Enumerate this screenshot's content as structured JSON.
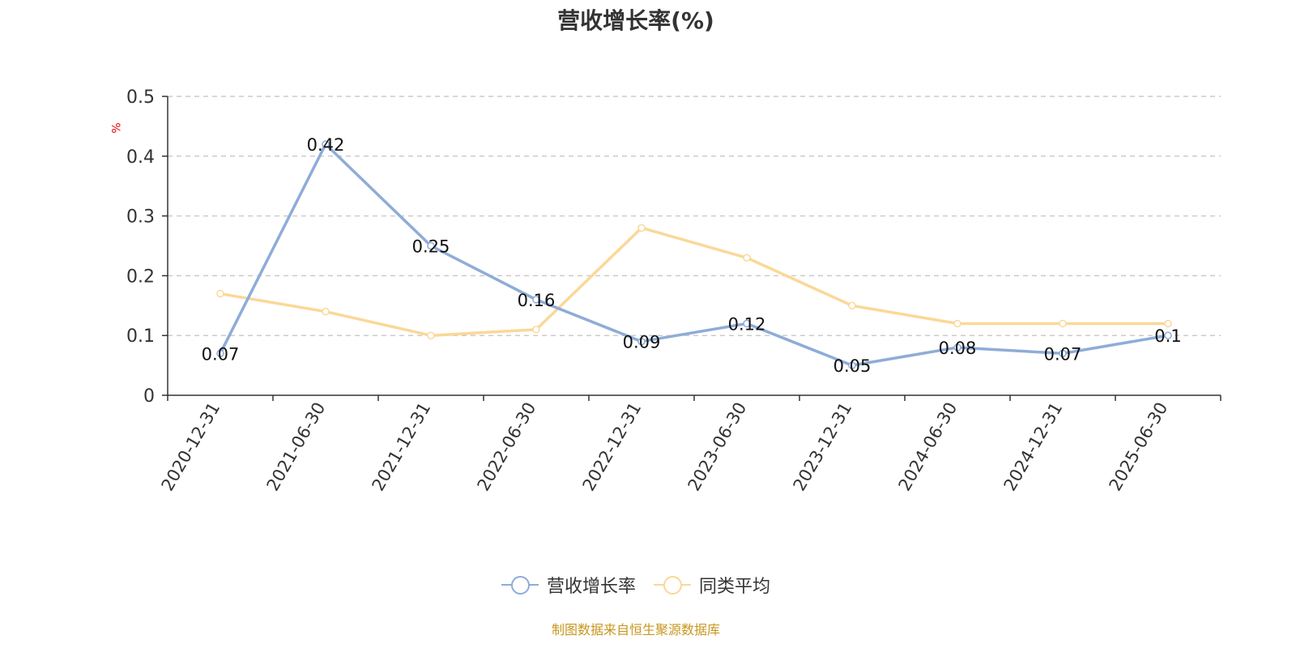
{
  "title": "营收增长率(%)",
  "source_note": "制图数据来自恒生聚源数据库",
  "colors": {
    "series1": "#8eacd8",
    "series2": "#fad898",
    "grid": "#cccccc",
    "axis": "#333333",
    "unit": "#ee0000",
    "source": "#c8961e"
  },
  "chart_data": {
    "type": "line",
    "title": "营收增长率(%)",
    "ylabel": "%",
    "ylim": [
      0,
      0.5
    ],
    "yticks": [
      "0",
      "0.1",
      "0.2",
      "0.3",
      "0.4",
      "0.5"
    ],
    "grid": true,
    "legend_position": "bottom",
    "categories": [
      "2020-12-31",
      "2021-06-30",
      "2021-12-31",
      "2022-06-30",
      "2022-12-31",
      "2023-06-30",
      "2023-12-31",
      "2024-06-30",
      "2024-12-31",
      "2025-06-30"
    ],
    "series": [
      {
        "name": "营收增长率",
        "values": [
          0.07,
          0.42,
          0.25,
          0.16,
          0.09,
          0.12,
          0.05,
          0.08,
          0.07,
          0.1
        ],
        "labels": [
          "0.07",
          "0.42",
          "0.25",
          "0.16",
          "0.09",
          "0.12",
          "0.05",
          "0.08",
          "0.07",
          "0.1"
        ]
      },
      {
        "name": "同类平均",
        "values": [
          0.17,
          0.14,
          0.1,
          0.11,
          0.28,
          0.23,
          0.15,
          0.12,
          0.12,
          0.12
        ]
      }
    ]
  }
}
